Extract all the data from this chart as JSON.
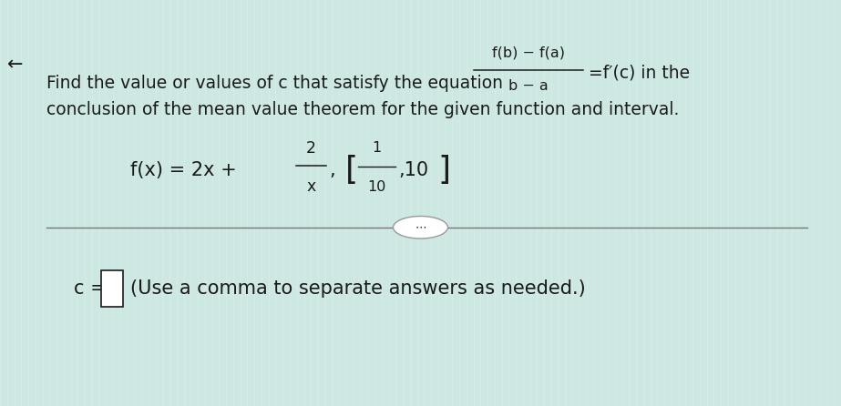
{
  "bg_color": "#cde8e2",
  "text_color": "#1a1a1a",
  "line1_plain": "Find the value or values of c that satisfy the equation",
  "fraction_num": "f(b) − f(a)",
  "fraction_den": "b − a",
  "line1_end": "=f′(c) in the",
  "line2": "conclusion of the mean value theorem for the given function and interval.",
  "func_prefix": "f(x) = 2x + ",
  "func_num": "2",
  "func_den": "x",
  "interval_right": "10",
  "answer_suffix": "(Use a comma to separate answers as needed.)",
  "arrow_char": "←",
  "dots": "⋯",
  "font_size_main": 13.5,
  "font_size_small": 11.5,
  "font_size_func": 15.0,
  "bg_dot_color": "#b8d8d2"
}
